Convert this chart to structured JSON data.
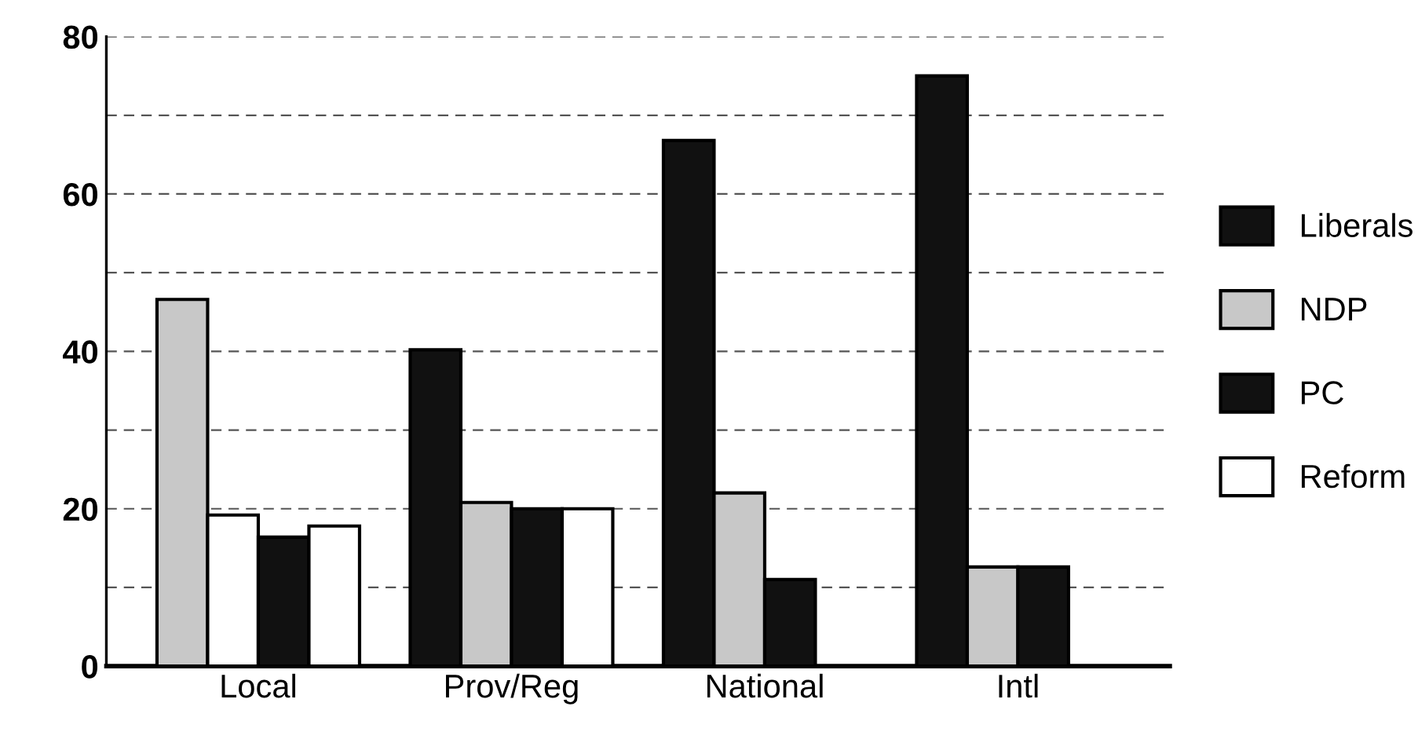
{
  "chart_data": {
    "type": "bar",
    "categories": [
      "Local",
      "Prov/Reg",
      "National",
      "Intl"
    ],
    "series": [
      {
        "name": "Liberals",
        "color": "#111111",
        "colors": [
          "#c8c8c8",
          "#111111",
          "#111111",
          "#111111"
        ],
        "values": [
          46.6,
          40.2,
          66.8,
          75
        ]
      },
      {
        "name": "NDP",
        "color": "#c8c8c8",
        "colors": [
          "#ffffff",
          "#c8c8c8",
          "#c8c8c8",
          "#c8c8c8"
        ],
        "values": [
          19.2,
          20.8,
          22,
          12.6
        ]
      },
      {
        "name": "PC",
        "color": "#111111",
        "values": [
          16.4,
          20,
          11,
          12.6
        ]
      },
      {
        "name": "Reform",
        "color": "#ffffff",
        "values": [
          17.8,
          20,
          null,
          null
        ]
      }
    ],
    "ylim": [
      0,
      80
    ],
    "yticks": [
      0,
      {
        "value": 10,
        "label": null
      },
      20,
      {
        "value": 30,
        "label": null
      },
      40,
      {
        "value": 50,
        "label": null
      },
      60,
      {
        "value": 70,
        "label": null
      },
      80
    ],
    "grid": "y",
    "legend": "right"
  }
}
